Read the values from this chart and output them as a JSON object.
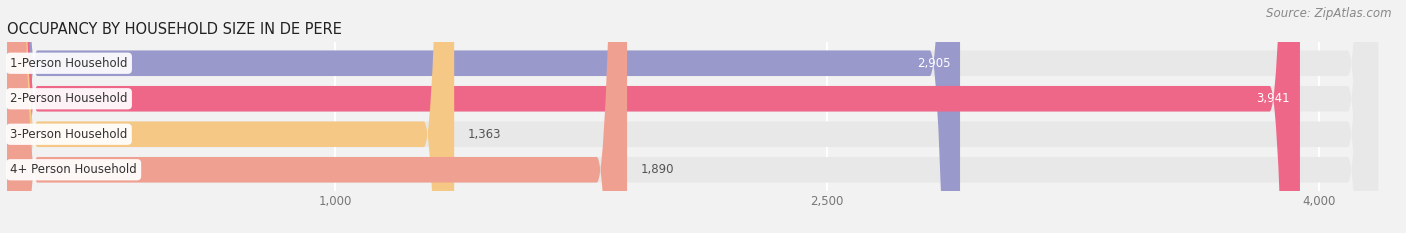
{
  "title": "OCCUPANCY BY HOUSEHOLD SIZE IN DE PERE",
  "source": "Source: ZipAtlas.com",
  "categories": [
    "1-Person Household",
    "2-Person Household",
    "3-Person Household",
    "4+ Person Household"
  ],
  "values": [
    2905,
    3941,
    1363,
    1890
  ],
  "bar_colors": [
    "#9999cc",
    "#ee6688",
    "#f5c886",
    "#f0a090"
  ],
  "bar_bg_color": "#e8e8e8",
  "background_color": "#f2f2f2",
  "xticks": [
    1000,
    2500,
    4000
  ],
  "xlim_max": 4200,
  "title_fontsize": 10.5,
  "source_fontsize": 8.5,
  "label_fontsize": 8.5,
  "value_fontsize": 8.5,
  "value_colors_inside": [
    "white",
    "white",
    "#555555",
    "#555555"
  ],
  "value_inside": [
    true,
    true,
    false,
    false
  ]
}
